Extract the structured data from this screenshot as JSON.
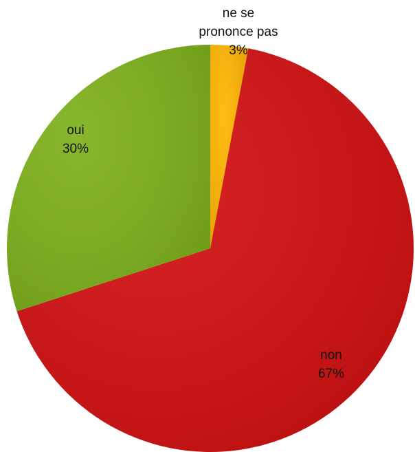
{
  "chart_data": {
    "type": "pie",
    "categories": [
      "ne se prononce pas",
      "non",
      "oui"
    ],
    "values": [
      3,
      67,
      30
    ],
    "value_labels": [
      "3%",
      "67%",
      "30%"
    ],
    "colors": [
      "#FFB500",
      "#D20F10",
      "#7DB11B"
    ]
  }
}
